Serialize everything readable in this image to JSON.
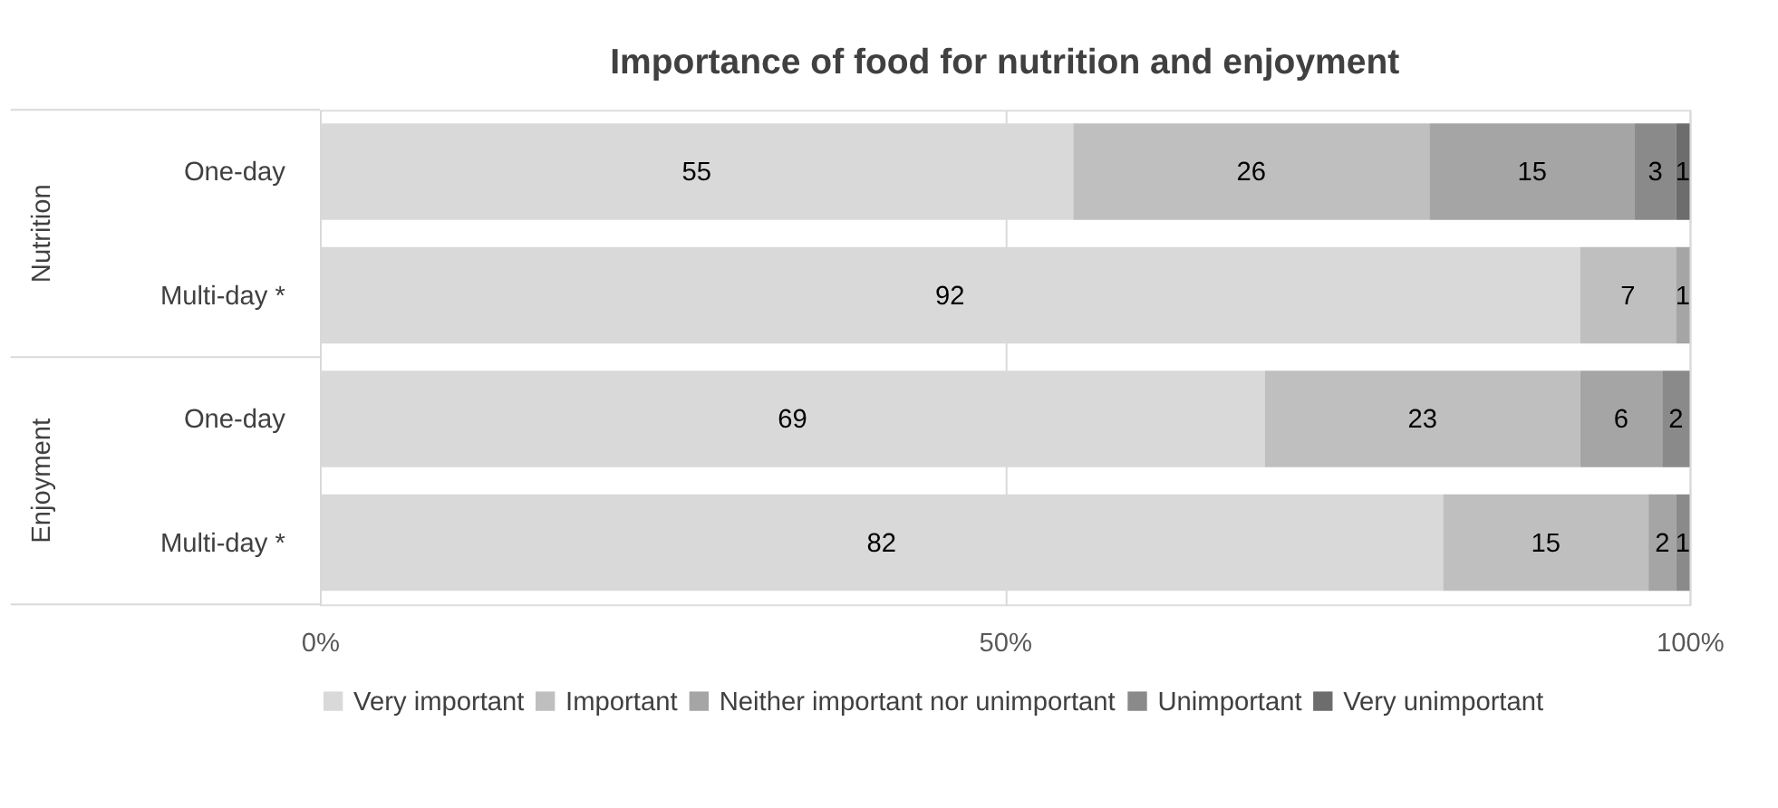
{
  "chart_data": {
    "type": "bar",
    "orientation": "horizontal",
    "stacked": true,
    "title": "Importance of food for nutrition and enjoyment",
    "categories": [
      "One-day",
      "Multi-day *",
      "One-day",
      "Multi-day *"
    ],
    "annotations": [
      "Nutrition",
      "Enjoyment"
    ],
    "series": [
      {
        "name": "Very important",
        "color": "#d9d9d9",
        "values": [
          55,
          92,
          69,
          82
        ]
      },
      {
        "name": "Important",
        "color": "#bfbfbf",
        "values": [
          26,
          7,
          23,
          15
        ]
      },
      {
        "name": "Neither important nor unimportant",
        "color": "#a5a5a5",
        "values": [
          15,
          1,
          6,
          2
        ]
      },
      {
        "name": "Unimportant",
        "color": "#8a8a8a",
        "values": [
          3,
          null,
          2,
          1
        ]
      },
      {
        "name": "Very unimportant",
        "color": "#6d6d6d",
        "values": [
          1,
          null,
          null,
          null
        ]
      }
    ],
    "xlim": [
      0,
      100
    ],
    "xticks": [
      {
        "value": 0,
        "label": "0%"
      },
      {
        "value": 50,
        "label": "50%"
      },
      {
        "value": 100,
        "label": "100%"
      }
    ],
    "grid": "x",
    "legend": "bottom",
    "data_labels": true
  }
}
